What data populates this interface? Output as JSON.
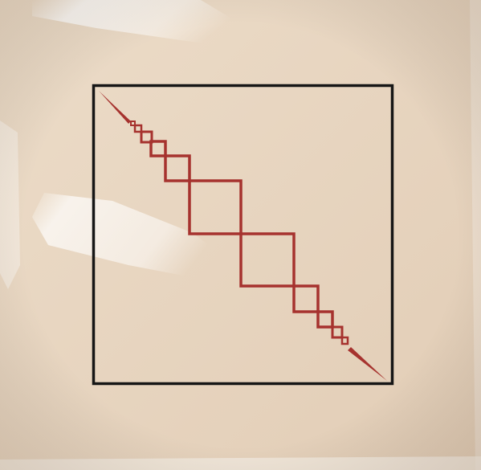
{
  "scene": {
    "subject": "record-sleeve-photo",
    "colors": {
      "sleeve": "#e8d6c2",
      "frame": "#161616",
      "motif": "#a6322e",
      "glare": "#ffffff"
    },
    "motif_squares": 11
  }
}
